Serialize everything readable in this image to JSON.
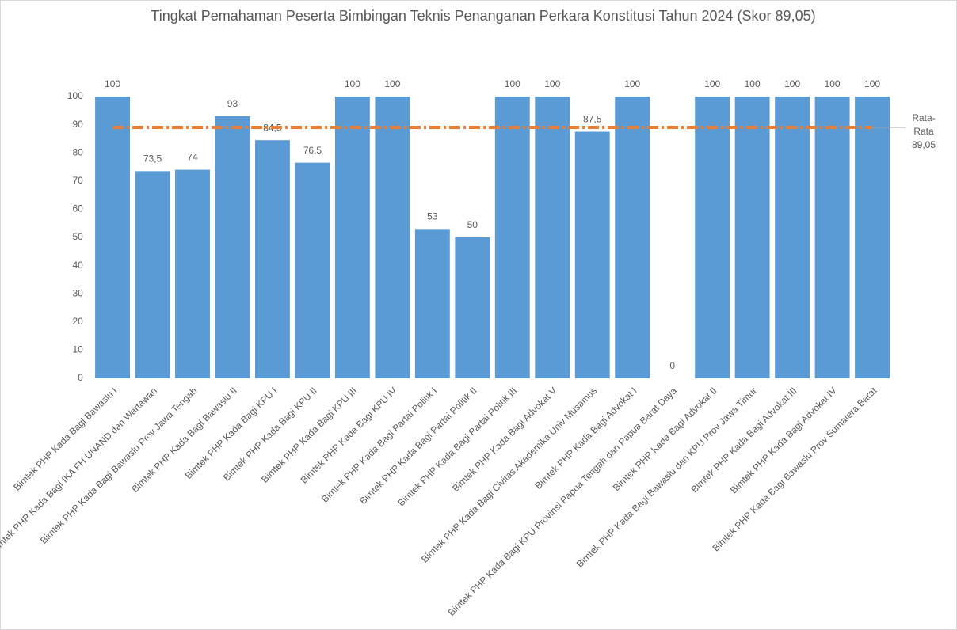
{
  "chart_data": {
    "type": "bar",
    "title": "Tingkat Pemahaman Peserta Bimbingan Teknis Penanganan Perkara Konstitusi Tahun 2024 (Skor 89,05)",
    "categories": [
      "Bimtek PHP Kada Bagi Bawaslu I",
      "Bimtek PHP Kada Bagi IKA FH UNAND dan Wartawan",
      "Bimtek PHP Kada Bagi Bawaslu Prov Jawa Tengah",
      "Bimtek PHP Kada Bagi Bawaslu II",
      "Bimtek PHP Kada Bagi KPU I",
      "Bimtek PHP Kada Bagi KPU II",
      "Bimtek PHP Kada Bagi KPU III",
      "Bimtek PHP Kada Bagi KPU IV",
      "Bimtek PHP Kada Bagi Partai Politik I",
      "Bimtek PHP Kada Bagi Partai Politik II",
      "Bimtek PHP Kada Bagi Partai Politik III",
      "Bimtek PHP Kada Bagi Advokat V",
      "Bimtek PHP Kada Bagi Civitas Akademika Univ Musamus",
      "Bimtek PHP Kada Bagi Advokat I",
      "Bimtek PHP Kada Bagi KPU Provinsi Papua Tengah dan Papua Barat Daya",
      "Bimtek PHP Kada Bagi Advokat II",
      "Bimtek PHP Kada Bagi Bawaslu dan KPU Prov Jawa Timur",
      "Bimtek PHP Kada Bagi Advokat III",
      "Bimtek PHP Kada Bagi Advokat IV",
      "Bimtek PHP Kada Bagi Bawaslu Prov Sumatera Barat"
    ],
    "values": [
      100,
      73.5,
      74,
      93,
      84.5,
      76.5,
      100,
      100,
      53,
      50,
      100,
      100,
      87.5,
      100,
      0,
      100,
      100,
      100,
      100,
      100
    ],
    "value_labels": [
      "100",
      "73,5",
      "74",
      "93",
      "84,5",
      "76,5",
      "100",
      "100",
      "53",
      "50",
      "100",
      "100",
      "87,5",
      "100",
      "0",
      "100",
      "100",
      "100",
      "100",
      "100"
    ],
    "color": "#5b9bd5",
    "average": {
      "name": "Rata-Rata",
      "value": 89.05,
      "value_label": "89,05",
      "color": "#ed7d31"
    },
    "ylim": [
      0,
      100
    ],
    "yticks": [
      0,
      10,
      20,
      30,
      40,
      50,
      60,
      70,
      80,
      90,
      100
    ],
    "grid": false
  }
}
